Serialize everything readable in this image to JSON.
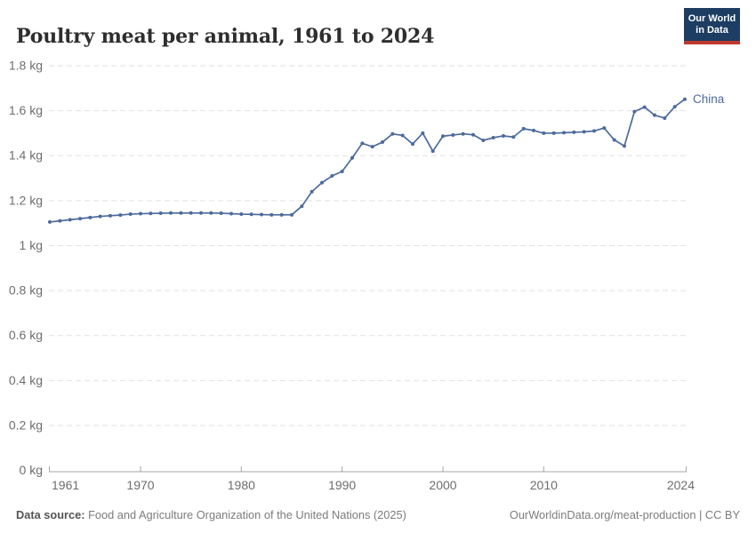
{
  "header": {
    "title": "Poultry meat per animal, 1961 to 2024"
  },
  "logo": {
    "line1": "Our World",
    "line2": "in Data",
    "bg_color": "#1d3d63",
    "bar_color": "#c0392f"
  },
  "footer": {
    "source_label": "Data source:",
    "source_text": " Food and Agriculture Organization of the United Nations (2025)",
    "link_text": "OurWorldinData.org/meat-production | CC BY"
  },
  "colors": {
    "line": "#4c6a9c",
    "entity_label": "#4c6a9c",
    "grid": "#e2e2e2",
    "axis": "#a5a5a5",
    "tick_label": "#6e6e6e"
  },
  "chart_data": {
    "type": "line",
    "title": "Poultry meat per animal, 1961 to 2024",
    "unit": "kg",
    "entity": "China",
    "legend_position": "end-of-line-label",
    "grid": "dashed-horizontal",
    "markers": true,
    "xlim": [
      1961,
      2024
    ],
    "ylim": [
      0,
      1.8
    ],
    "x": [
      1961,
      1962,
      1963,
      1964,
      1965,
      1966,
      1967,
      1968,
      1969,
      1970,
      1971,
      1972,
      1973,
      1974,
      1975,
      1976,
      1977,
      1978,
      1979,
      1980,
      1981,
      1982,
      1983,
      1984,
      1985,
      1986,
      1987,
      1988,
      1989,
      1990,
      1991,
      1992,
      1993,
      1994,
      1995,
      1996,
      1997,
      1998,
      1999,
      2000,
      2001,
      2002,
      2003,
      2004,
      2005,
      2006,
      2007,
      2008,
      2009,
      2010,
      2011,
      2012,
      2013,
      2014,
      2015,
      2016,
      2017,
      2018,
      2019,
      2020,
      2021,
      2022,
      2023,
      2024
    ],
    "values": [
      1.105,
      1.11,
      1.115,
      1.12,
      1.125,
      1.13,
      1.133,
      1.136,
      1.14,
      1.142,
      1.143,
      1.144,
      1.145,
      1.145,
      1.145,
      1.145,
      1.145,
      1.144,
      1.142,
      1.14,
      1.139,
      1.138,
      1.137,
      1.137,
      1.137,
      1.175,
      1.24,
      1.28,
      1.31,
      1.33,
      1.39,
      1.455,
      1.44,
      1.46,
      1.497,
      1.49,
      1.452,
      1.5,
      1.42,
      1.487,
      1.492,
      1.497,
      1.493,
      1.468,
      1.48,
      1.488,
      1.483,
      1.52,
      1.512,
      1.5,
      1.5,
      1.502,
      1.504,
      1.506,
      1.51,
      1.523,
      1.47,
      1.443,
      1.596,
      1.616,
      1.58,
      1.567,
      1.618,
      1.651
    ],
    "yticks": [
      {
        "value": 0,
        "label": "0 kg"
      },
      {
        "value": 0.2,
        "label": "0.2 kg"
      },
      {
        "value": 0.4,
        "label": "0.4 kg"
      },
      {
        "value": 0.6,
        "label": "0.6 kg"
      },
      {
        "value": 0.8,
        "label": "0.8 kg"
      },
      {
        "value": 1,
        "label": "1 kg"
      },
      {
        "value": 1.2,
        "label": "1.2 kg"
      },
      {
        "value": 1.4,
        "label": "1.4 kg"
      },
      {
        "value": 1.6,
        "label": "1.6 kg"
      },
      {
        "value": 1.8,
        "label": "1.8 kg"
      }
    ],
    "xticks": [
      {
        "year": 1961,
        "label": "1961"
      },
      {
        "year": 1970,
        "label": "1970"
      },
      {
        "year": 1980,
        "label": "1980"
      },
      {
        "year": 1990,
        "label": "1990"
      },
      {
        "year": 2000,
        "label": "2000"
      },
      {
        "year": 2010,
        "label": "2010"
      },
      {
        "year": 2024,
        "label": "2024"
      }
    ]
  }
}
